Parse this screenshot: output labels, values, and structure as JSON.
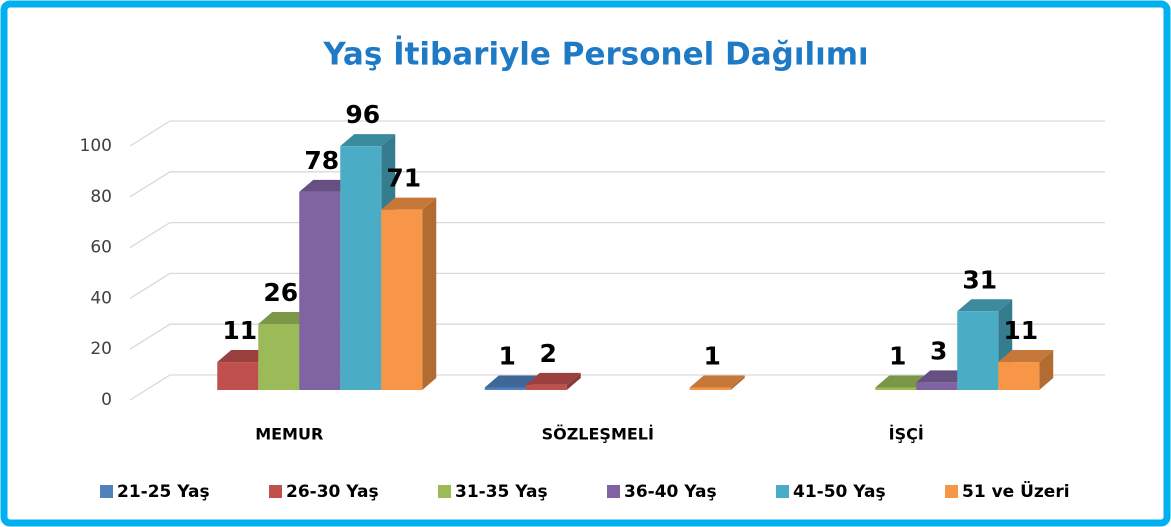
{
  "chart_data": {
    "type": "bar3d",
    "title": "Yaş İtibariyle Personel Dağılımı",
    "categories": [
      "MEMUR",
      "SÖZLEŞMELİ",
      "İŞÇİ"
    ],
    "series": [
      {
        "name": "21-25 Yaş",
        "color": "#4f81bd",
        "values": [
          null,
          1,
          null
        ]
      },
      {
        "name": "26-30 Yaş",
        "color": "#c0504d",
        "values": [
          11,
          2,
          null
        ]
      },
      {
        "name": "31-35 Yaş",
        "color": "#9bbb59",
        "values": [
          26,
          null,
          1
        ]
      },
      {
        "name": "36-40 Yaş",
        "color": "#8064a2",
        "values": [
          78,
          null,
          3
        ]
      },
      {
        "name": "41-50 Yaş",
        "color": "#4bacc6",
        "values": [
          96,
          null,
          31
        ]
      },
      {
        "name": "51 ve Üzeri",
        "color": "#f79646",
        "values": [
          71,
          1,
          11
        ]
      }
    ],
    "ylim": [
      0,
      100
    ],
    "yticks": [
      0,
      20,
      40,
      60,
      80,
      100
    ],
    "grid": true,
    "legend": "bottom"
  }
}
